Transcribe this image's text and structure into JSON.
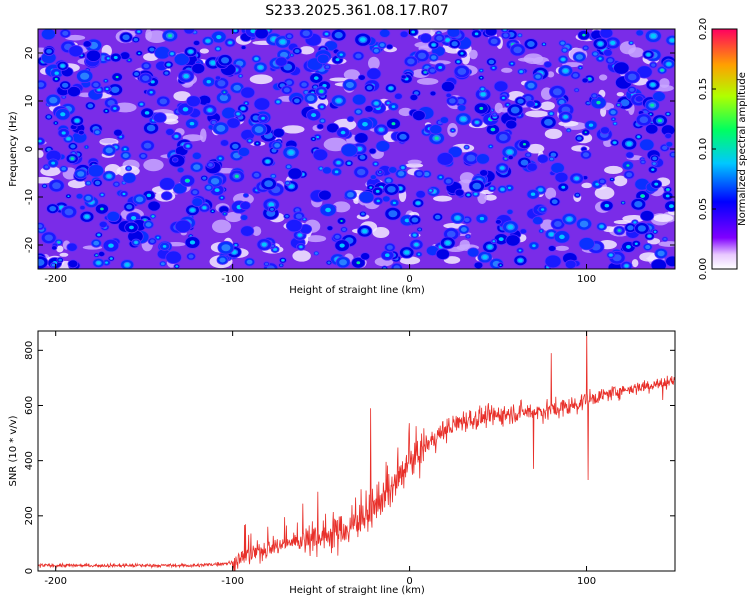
{
  "title": "S233.2025.361.08.17.R07",
  "chart_data": [
    {
      "type": "heatmap",
      "name": "spectrogram",
      "xlabel": "Height of straight line (km)",
      "ylabel": "Frequency (Hz)",
      "xlim": [
        -210,
        150
      ],
      "ylim": [
        -25,
        25
      ],
      "xticks": [
        -200,
        -100,
        0,
        100
      ],
      "yticks": [
        -20,
        -10,
        0,
        10,
        20
      ],
      "colorbar": {
        "label": "Normalized spectral amplitude",
        "range": [
          0.0,
          0.2
        ],
        "ticks": [
          "0.00",
          "0.05",
          "0.10",
          "0.15",
          "0.20"
        ],
        "colormap": [
          "#ffffff",
          "#8000ff",
          "#0000ff",
          "#00ffff",
          "#00ff00",
          "#ffff00",
          "#ff0000"
        ]
      },
      "description_values": {
        "background_level": 0.02,
        "typical_peak": 0.08,
        "max_peak": 0.12
      }
    },
    {
      "type": "line",
      "name": "snr",
      "xlabel": "Height of straight line (km)",
      "ylabel": "SNR (10 * v/v)",
      "xlim": [
        -210,
        150
      ],
      "ylim": [
        0,
        870
      ],
      "xticks": [
        -200,
        -100,
        0,
        100
      ],
      "yticks": [
        0,
        200,
        400,
        600,
        800
      ],
      "color": "#e8302a",
      "trend_points": [
        {
          "x": -210,
          "y": 20
        },
        {
          "x": -120,
          "y": 20
        },
        {
          "x": -100,
          "y": 30
        },
        {
          "x": -90,
          "y": 60
        },
        {
          "x": -70,
          "y": 100
        },
        {
          "x": -50,
          "y": 130
        },
        {
          "x": -35,
          "y": 150
        },
        {
          "x": -25,
          "y": 200
        },
        {
          "x": -15,
          "y": 260
        },
        {
          "x": -5,
          "y": 340
        },
        {
          "x": 0,
          "y": 390
        },
        {
          "x": 10,
          "y": 460
        },
        {
          "x": 20,
          "y": 510
        },
        {
          "x": 30,
          "y": 545
        },
        {
          "x": 45,
          "y": 560
        },
        {
          "x": 60,
          "y": 575
        },
        {
          "x": 75,
          "y": 580
        },
        {
          "x": 90,
          "y": 595
        },
        {
          "x": 100,
          "y": 620
        },
        {
          "x": 120,
          "y": 655
        },
        {
          "x": 150,
          "y": 690
        }
      ],
      "spikes": [
        {
          "x": -22,
          "y": 590
        },
        {
          "x": 80,
          "y": 790
        },
        {
          "x": 100,
          "y": 870
        },
        {
          "x": 101,
          "y": 330
        },
        {
          "x": 70,
          "y": 370
        },
        {
          "x": 143,
          "y": 620
        }
      ]
    }
  ]
}
